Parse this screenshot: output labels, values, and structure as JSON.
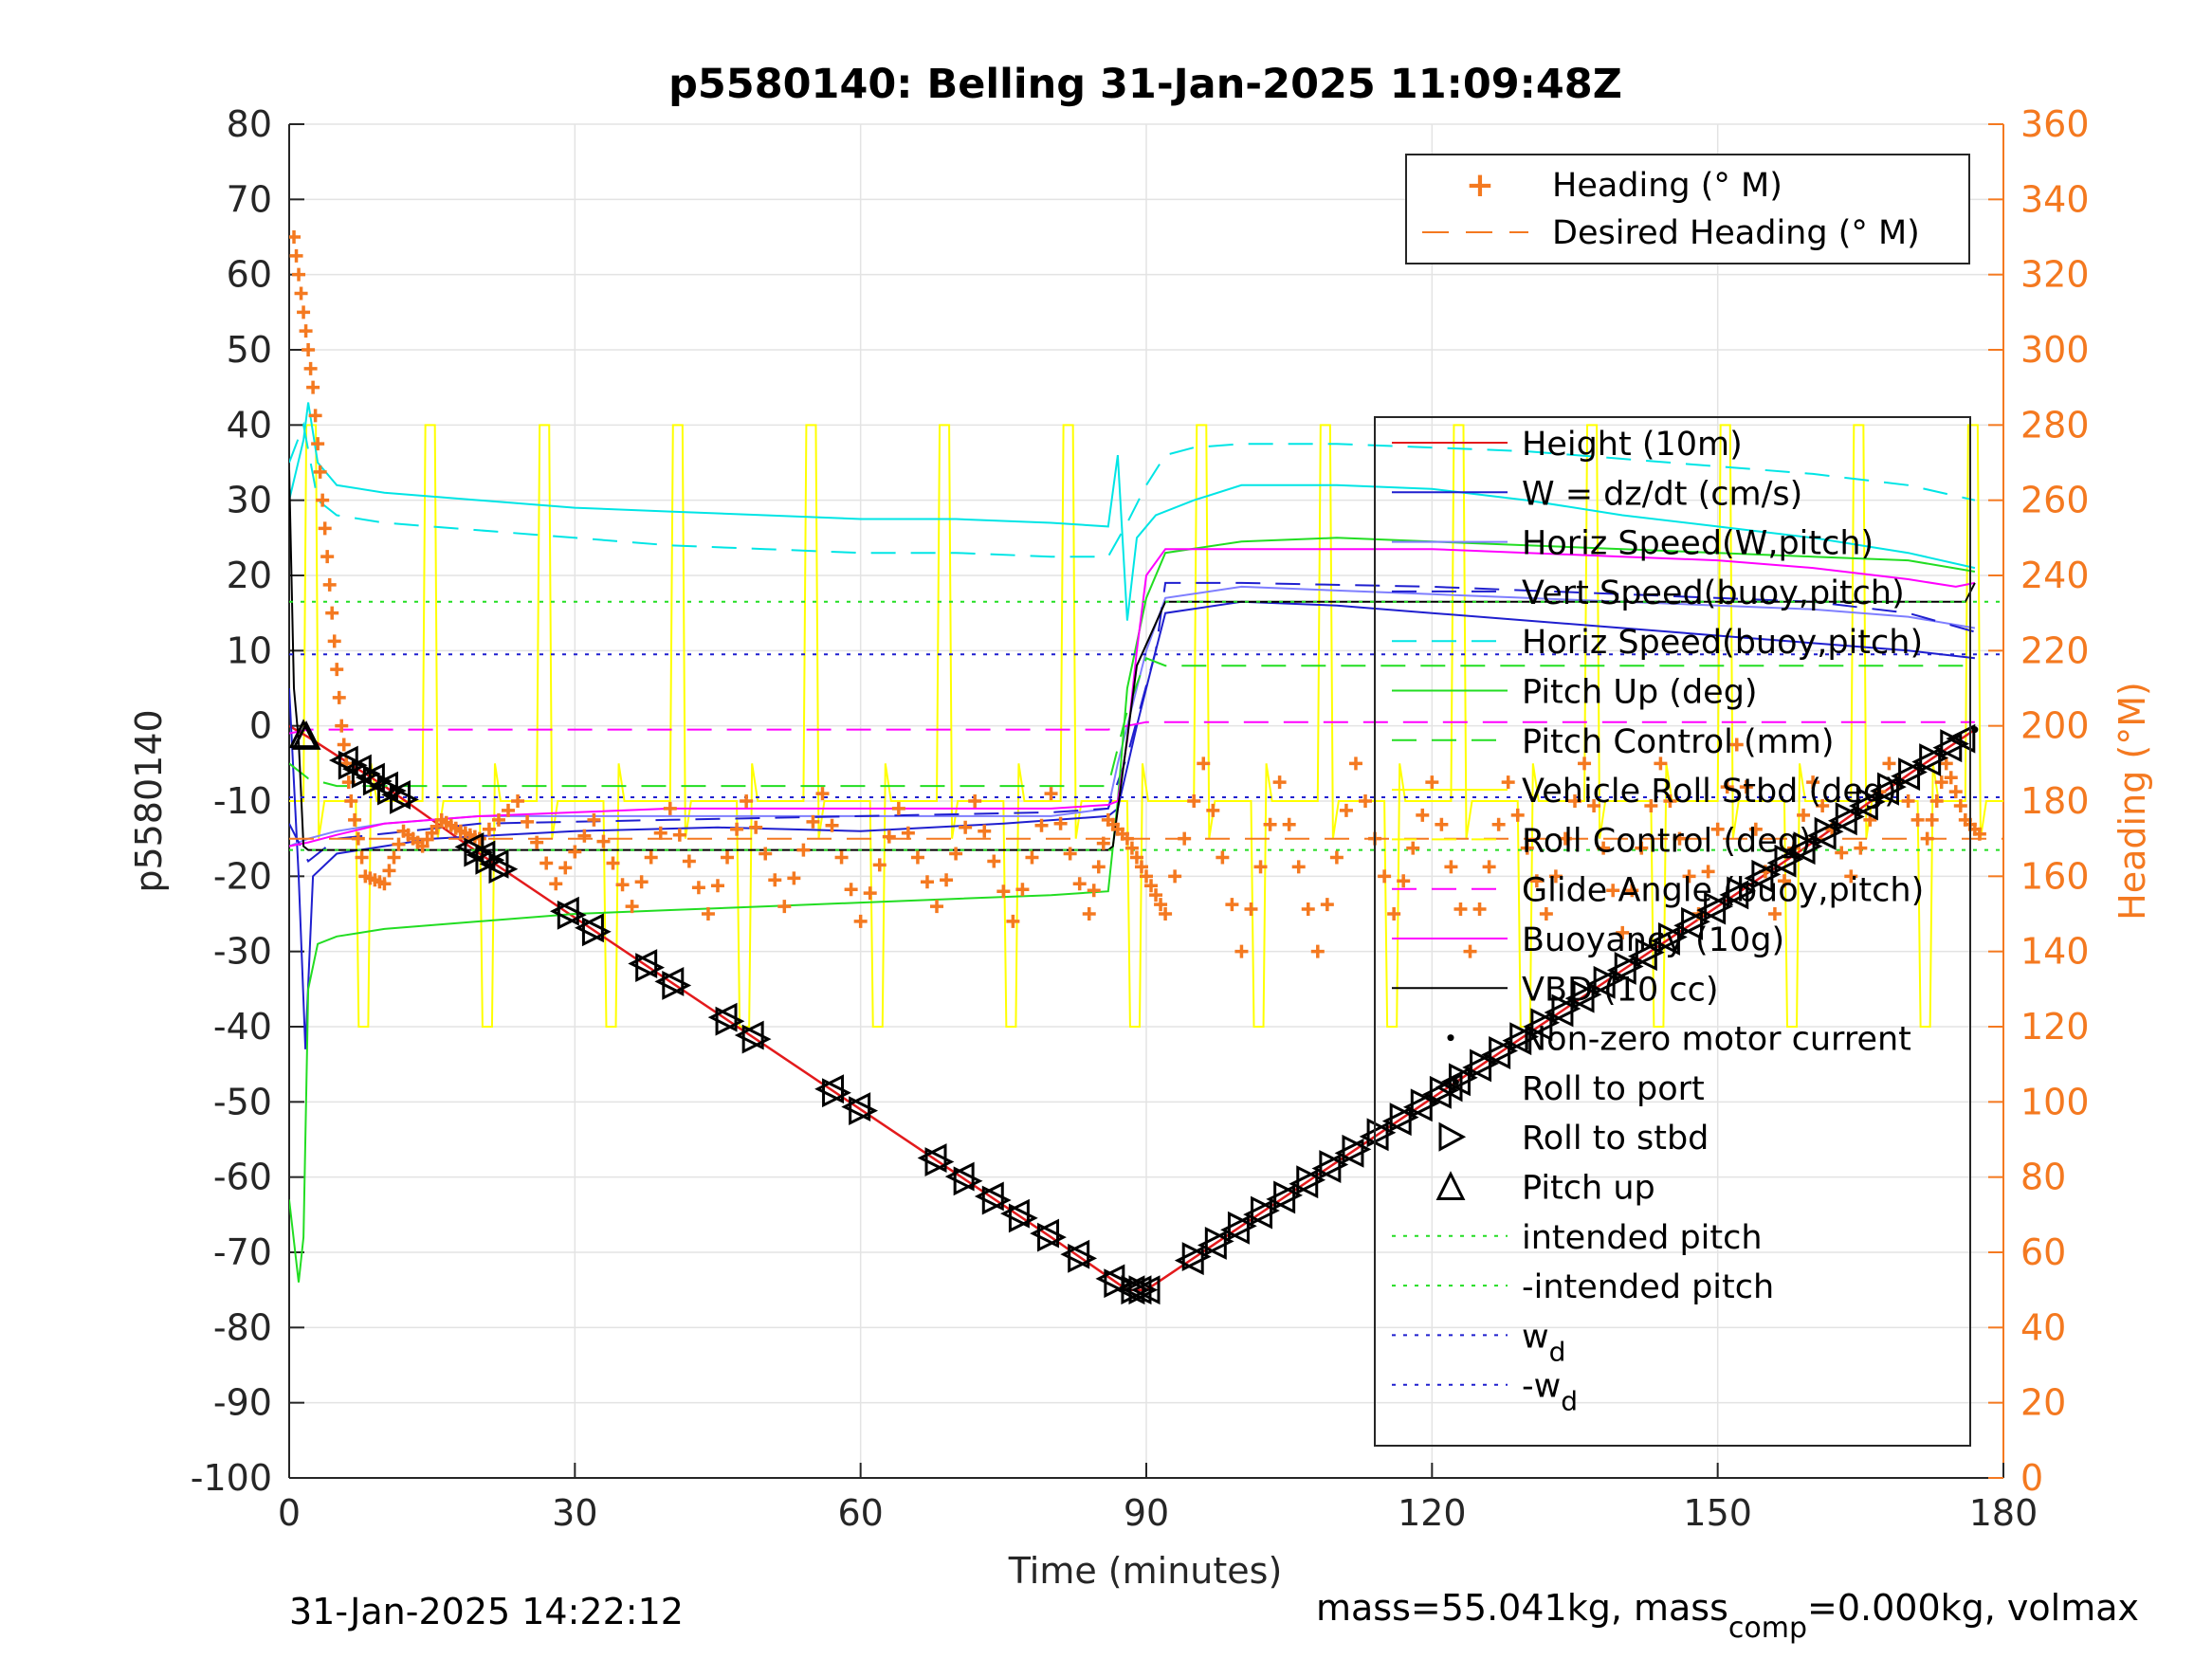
{
  "figure": {
    "title": "p5580140: Belling 31-Jan-2025 11:09:48Z",
    "footer_left": "31-Jan-2025 14:22:12",
    "footer_right": {
      "t1": "mass=55.041kg, mass",
      "sub": "comp",
      "t2": "=0.000kg, volmax"
    }
  },
  "chart_data": {
    "type": "line",
    "title": "p5580140: Belling 31-Jan-2025 11:09:48Z",
    "xlabel": "Time (minutes)",
    "ylabel": "p5580140",
    "ylabel_right": "Heading (°M)",
    "xlim": [
      0,
      180
    ],
    "ylim": [
      -100,
      80
    ],
    "ylim_right": [
      0,
      360
    ],
    "xticks": [
      0,
      30,
      60,
      90,
      120,
      150,
      180
    ],
    "yticks": [
      -100,
      -90,
      -80,
      -70,
      -60,
      -50,
      -40,
      -30,
      -20,
      -10,
      0,
      10,
      20,
      30,
      40,
      50,
      60,
      70,
      80
    ],
    "yticks_right": [
      0,
      20,
      40,
      60,
      80,
      100,
      120,
      140,
      160,
      180,
      200,
      220,
      240,
      260,
      280,
      300,
      320,
      340,
      360
    ],
    "grid": true,
    "colors": {
      "axis": "#262626",
      "right_axis": "#f47920",
      "height": "#e31a1c",
      "w": "#1f1fcf",
      "horiz_speed_w": "#7f7fff",
      "vert_speed_buoy": "#1f1fcf",
      "horiz_speed_buoy": "#00e5e5",
      "pitch_up": "#22dd22",
      "pitch_control": "#22dd22",
      "roll_stbd": "#ffff00",
      "roll_control": "#ffff00",
      "glide_angle": "#ff00ff",
      "buoyancy": "#ff00ff",
      "vbd": "#000000",
      "heading": "#f47920",
      "intended_pitch": "#22dd22",
      "w_d": "#1f1fcf"
    },
    "legend_top": {
      "placement": "top-right",
      "entries": [
        "Heading (° M)",
        "Desired Heading (° M)"
      ]
    },
    "legend_main": {
      "placement": "right",
      "entries": [
        "Height (10m)",
        "W = dz/dt (cm/s)",
        "Horiz Speed(W,pitch)",
        "Vert Speed(buoy,pitch)",
        "Horiz Speed(buoy,pitch)",
        "Pitch Up (deg)",
        "Pitch Control (mm)",
        "Vehicle Roll Stbd (deg)",
        "Roll Control (deg)",
        "Glide Angle (buoy,pitch)",
        "Buoyancy (10g)",
        "VBD (10 cc)",
        "Non-zero motor current",
        "Roll to port",
        "Roll to stbd",
        "Pitch up",
        "intended pitch",
        "-intended pitch",
        "w",
        "-w"
      ],
      "subscripts": {
        "18": "d",
        "19": "d"
      }
    },
    "series": [
      {
        "name": "Height (10m)",
        "style": "solid",
        "x": [
          0,
          2,
          10,
          20,
          30,
          40,
          50,
          60,
          70,
          80,
          88,
          90,
          100,
          110,
          120,
          130,
          140,
          150,
          160,
          170,
          177
        ],
        "y": [
          0,
          -1.5,
          -8,
          -17,
          -25.5,
          -34,
          -42.5,
          -51,
          -59.5,
          -68,
          -75,
          -75,
          -66.5,
          -58,
          -49.5,
          -41,
          -32.5,
          -24,
          -15.5,
          -6.5,
          -0.5
        ]
      },
      {
        "name": "W = dz/dt (cm/s)",
        "style": "solid",
        "x": [
          0,
          1,
          1.7,
          2.5,
          5,
          15,
          30,
          45,
          60,
          75,
          86,
          87,
          89,
          91,
          92,
          100,
          110,
          120,
          130,
          140,
          150,
          160,
          170,
          177
        ],
        "y": [
          5,
          -20,
          -43,
          -20,
          -17,
          -15,
          -14,
          -13.5,
          -14,
          -13,
          -12,
          -11,
          0,
          10,
          15,
          16.5,
          16,
          15,
          14,
          13,
          12,
          11,
          10,
          9
        ]
      },
      {
        "name": "Horiz Speed(W,pitch)",
        "style": "solid",
        "x": [
          0,
          2,
          5,
          10,
          20,
          30,
          40,
          50,
          60,
          70,
          80,
          86,
          87,
          90,
          92,
          100,
          110,
          120,
          130,
          140,
          150,
          160,
          170,
          177
        ],
        "y": [
          -16,
          -15,
          -14,
          -13,
          -12,
          -12,
          -12,
          -12,
          -12,
          -12,
          -12,
          -11,
          -5,
          10,
          17,
          18.5,
          18,
          17.5,
          17,
          16.5,
          16,
          15.5,
          14.5,
          13
        ]
      },
      {
        "name": "Vert Speed(buoy,pitch)",
        "style": "dashed",
        "x": [
          0,
          2,
          5,
          20,
          40,
          60,
          80,
          86,
          88,
          91,
          92,
          100,
          120,
          140,
          160,
          170,
          177
        ],
        "y": [
          -13,
          -18,
          -15,
          -13,
          -12.5,
          -12,
          -11.5,
          -11,
          -4,
          10,
          19,
          19,
          18.5,
          17.5,
          16.5,
          15,
          12.5
        ]
      },
      {
        "name": "Horiz Speed(buoy,pitch)",
        "style": "dashed",
        "x": [
          0,
          1.5,
          3,
          5,
          10,
          20,
          30,
          40,
          50,
          60,
          70,
          80,
          86,
          88,
          90,
          92,
          95,
          100,
          110,
          120,
          130,
          140,
          150,
          160,
          170,
          177
        ],
        "y": [
          35,
          40,
          30,
          28,
          27,
          26,
          25,
          24,
          23.5,
          23,
          23,
          22.5,
          22.5,
          27,
          32,
          36,
          37,
          37.5,
          37.5,
          37,
          36.5,
          35.5,
          34.5,
          33.5,
          32,
          30
        ]
      },
      {
        "name": "Horiz Speed(buoy,pitch) measured",
        "style": "solid",
        "x": [
          0,
          1.5,
          2,
          3,
          5,
          10,
          20,
          30,
          40,
          50,
          60,
          70,
          80,
          86,
          87,
          88,
          89,
          91,
          95,
          100,
          110,
          120,
          130,
          140,
          150,
          160,
          170,
          177
        ],
        "y": [
          30,
          38,
          43,
          35,
          32,
          31,
          30,
          29,
          28.5,
          28,
          27.5,
          27.5,
          27,
          26.5,
          36,
          14,
          25,
          28,
          30,
          32,
          32,
          31.5,
          30,
          28,
          26.5,
          25,
          23,
          21
        ]
      },
      {
        "name": "Pitch Up (deg)",
        "style": "solid",
        "x": [
          0,
          1,
          1.5,
          2,
          3,
          5,
          10,
          20,
          30,
          40,
          50,
          60,
          70,
          80,
          86,
          87,
          88,
          90,
          92,
          100,
          110,
          120,
          130,
          140,
          150,
          160,
          170,
          177
        ],
        "y": [
          -63,
          -74,
          -68,
          -35,
          -29,
          -28,
          -27,
          -26,
          -25,
          -24.5,
          -24,
          -23.5,
          -23,
          -22.5,
          -22,
          -10,
          5,
          17,
          23,
          24.5,
          25,
          24.5,
          24,
          23.5,
          23,
          22.5,
          22,
          20.5
        ]
      },
      {
        "name": "Pitch Control (mm)",
        "style": "dashed",
        "x": [
          0,
          2,
          5,
          10,
          20,
          40,
          60,
          80,
          86,
          88,
          90,
          92,
          100,
          120,
          140,
          160,
          170,
          177
        ],
        "y": [
          -5,
          -7,
          -8,
          -8,
          -8,
          -8,
          -8,
          -8,
          -8,
          2,
          9,
          8,
          8,
          8,
          8,
          8,
          8,
          8
        ]
      },
      {
        "name": "Buoyancy (10g)",
        "style": "solid",
        "x": [
          0,
          2,
          5,
          10,
          20,
          30,
          40,
          50,
          60,
          70,
          80,
          86,
          87,
          88,
          89,
          90,
          92,
          100,
          110,
          120,
          130,
          140,
          150,
          160,
          170,
          175,
          177
        ],
        "y": [
          -16,
          -15.5,
          -14.5,
          -13,
          -12,
          -11.5,
          -11,
          -11,
          -11,
          -11,
          -11,
          -10.5,
          -10,
          -2,
          10,
          20,
          23.5,
          23.5,
          23.5,
          23.5,
          23,
          22.5,
          22,
          21,
          19.5,
          18.5,
          19
        ]
      },
      {
        "name": "Glide Angle (buoy,pitch)",
        "style": "dashed",
        "x": [
          0,
          2,
          20,
          40,
          60,
          80,
          86,
          88,
          90,
          92,
          110,
          130,
          150,
          170,
          177
        ],
        "y": [
          -1,
          -0.5,
          -0.5,
          -0.5,
          -0.5,
          -0.5,
          -0.5,
          0,
          0.5,
          0.5,
          0.5,
          0.5,
          0.5,
          0.5,
          0.5
        ]
      },
      {
        "name": "VBD (10 cc)",
        "style": "solid",
        "x": [
          0,
          0.5,
          1,
          1.5,
          2,
          86,
          86.5,
          89,
          92,
          100,
          110,
          120,
          130,
          140,
          150,
          160,
          170,
          176,
          177
        ],
        "y": [
          34,
          5,
          -2,
          -16,
          -16.5,
          -16.5,
          -16,
          8,
          16.5,
          16.5,
          16.5,
          16.5,
          16.5,
          16.5,
          16.5,
          16.5,
          16.5,
          16.5,
          19
        ]
      },
      {
        "name": "intended pitch",
        "style": "dotted",
        "x": [
          0,
          180
        ],
        "y": [
          16.5,
          16.5
        ]
      },
      {
        "name": "-intended pitch",
        "style": "dotted",
        "x": [
          0,
          180
        ],
        "y": [
          -16.5,
          -16.5
        ]
      },
      {
        "name": "w_d",
        "style": "dotted",
        "x": [
          0,
          180
        ],
        "y": [
          9.5,
          9.5
        ]
      },
      {
        "name": "-w_d",
        "style": "dotted",
        "x": [
          0,
          180
        ],
        "y": [
          -9.5,
          -9.5
        ]
      },
      {
        "name": "Vehicle Roll Stbd (deg) / Roll Control (deg)",
        "style": "solid",
        "pulse_x": [
          1.5,
          7,
          14,
          20,
          26,
          33,
          40,
          47,
          54,
          61,
          68,
          75,
          81,
          88,
          95,
          101,
          108,
          115,
          122,
          129,
          136,
          143,
          150,
          157,
          164,
          171,
          176
        ],
        "y_high": 40,
        "y_low": -40,
        "y_base": -10
      },
      {
        "name": "Heading (° M)",
        "axis": "right",
        "style": "markers",
        "x": [
          0.5,
          1.5,
          2.5,
          3.5,
          4.5,
          5.5,
          6.5,
          8,
          10,
          12,
          14,
          16,
          18,
          20,
          24,
          28,
          32,
          36,
          40,
          44,
          48,
          52,
          56,
          60,
          64,
          68,
          72,
          76,
          80,
          84,
          86,
          88,
          90,
          92,
          96,
          100,
          104,
          108,
          112,
          116,
          120,
          124,
          128,
          132,
          136,
          140,
          144,
          148,
          152,
          156,
          160,
          164,
          168,
          172,
          174,
          176,
          178
        ],
        "y": [
          330,
          310,
          290,
          260,
          230,
          200,
          180,
          160,
          158,
          172,
          168,
          175,
          172,
          170,
          180,
          158,
          175,
          152,
          178,
          150,
          180,
          152,
          182,
          148,
          178,
          152,
          180,
          148,
          182,
          150,
          175,
          170,
          160,
          150,
          190,
          140,
          185,
          140,
          190,
          150,
          185,
          140,
          185,
          150,
          190,
          145,
          190,
          150,
          195,
          150,
          185,
          160,
          190,
          170,
          190,
          175,
          170
        ]
      },
      {
        "name": "Desired Heading (° M)",
        "axis": "right",
        "style": "dashed",
        "x": [
          0,
          180
        ],
        "y": [
          170,
          170
        ]
      }
    ],
    "markers": {
      "pitch_up": {
        "name": "Pitch up",
        "x": [
          1.5,
          1.8
        ]
      },
      "roll_to_port": {
        "name": "Roll to port",
        "x": [
          5.8,
          7.2,
          8.6,
          10.0,
          11.3,
          19.0,
          20.2,
          21.6,
          29.0,
          31.6,
          37.2,
          40.0,
          45.6,
          48.4,
          56.8,
          59.6,
          67.6,
          70.5,
          73.6,
          76.3,
          79.4,
          82.6,
          86.3,
          88.4,
          89.1,
          90.0,
          94.6,
          97.0,
          99.4,
          101.8,
          104.2,
          106.6,
          109.0,
          111.4,
          114.0,
          116.4,
          118.6,
          120.6,
          122.6,
          124.8,
          126.8,
          129.0,
          131.2,
          133.4,
          135.6,
          137.8,
          140.0,
          142.2,
          144.6,
          147.0,
          149.4,
          151.8,
          154.4,
          156.8,
          158.8,
          161.0,
          163.2,
          165.4,
          167.6,
          169.8,
          172.0,
          174.2,
          175.6
        ]
      },
      "roll_to_stbd": {
        "name": "Roll to stbd",
        "x": [
          6.6,
          8.0,
          9.2,
          10.7,
          12.0,
          19.8,
          21.0,
          22.4,
          29.6,
          32.2,
          37.8,
          40.6,
          46.2,
          49.0,
          57.4,
          60.2,
          68.2,
          71.2,
          74.2,
          77.0,
          80.0,
          83.2,
          87.0,
          88.8,
          89.6,
          95.2,
          97.6,
          100.0,
          102.4,
          104.8,
          107.2,
          109.6,
          112.0,
          114.6,
          117.0,
          119.2,
          121.2,
          123.2,
          125.4,
          127.4,
          129.6,
          131.8,
          134.0,
          136.2,
          138.4,
          140.6,
          142.8,
          145.2,
          147.6,
          150.0,
          152.4,
          155.0,
          157.4,
          159.4,
          161.6,
          163.8,
          166.0,
          168.2,
          170.4,
          172.6,
          174.8
        ]
      },
      "non_zero_motor_current": {
        "name": "Non-zero motor current",
        "x": [
          122.5,
          158.0,
          177.0
        ]
      }
    }
  }
}
